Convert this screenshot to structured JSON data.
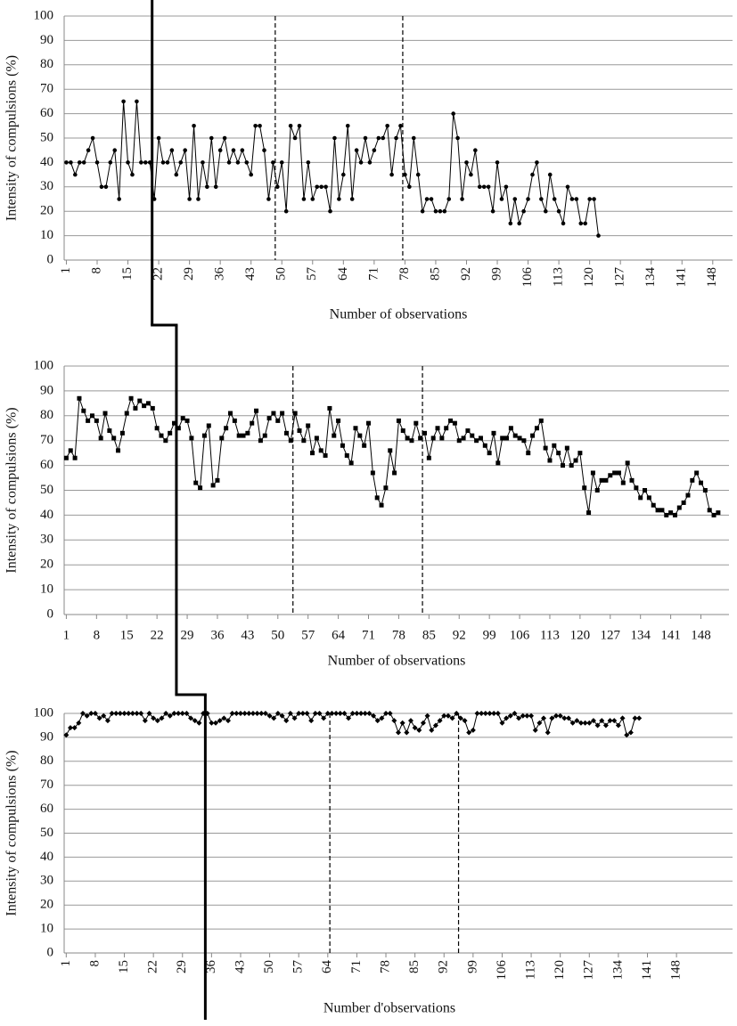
{
  "chart_data": [
    {
      "type": "line",
      "y_label": "Intensity of compulsions (%)",
      "x_label": "Number of observations",
      "color": "#000000",
      "marker": "circle",
      "grid": true,
      "xlim": [
        0.5,
        152.5
      ],
      "ylim": [
        0,
        100
      ],
      "xticks": [
        1,
        8,
        15,
        22,
        29,
        36,
        43,
        50,
        57,
        64,
        71,
        78,
        85,
        92,
        99,
        106,
        113,
        120,
        127,
        134,
        141,
        148
      ],
      "yticks": [
        0,
        10,
        20,
        30,
        40,
        50,
        60,
        70,
        80,
        90,
        100
      ],
      "baseline_end": 20.5,
      "phase_lines": [
        48.5,
        77.5
      ],
      "x": [
        1,
        2,
        3,
        4,
        5,
        6,
        7,
        8,
        9,
        10,
        11,
        12,
        13,
        14,
        15,
        16,
        17,
        18,
        19,
        20,
        21,
        22,
        23,
        24,
        25,
        26,
        27,
        28,
        29,
        30,
        31,
        32,
        33,
        34,
        35,
        36,
        37,
        38,
        39,
        40,
        41,
        42,
        43,
        44,
        45,
        46,
        47,
        48,
        49,
        50,
        51,
        52,
        53,
        54,
        55,
        56,
        57,
        58,
        59,
        60,
        61,
        62,
        63,
        64,
        65,
        66,
        67,
        68,
        69,
        70,
        71,
        72,
        73,
        74,
        75,
        76,
        77,
        78,
        79,
        80,
        81,
        82,
        83,
        84,
        85,
        86,
        87,
        88,
        89,
        90,
        91,
        92,
        93,
        94,
        95,
        96,
        97,
        98,
        99,
        100,
        101,
        102,
        103,
        104,
        105,
        106,
        107,
        108,
        109,
        110,
        111,
        112,
        113,
        114,
        115,
        116,
        117,
        118,
        119,
        120,
        121,
        122
      ],
      "values": [
        40,
        40,
        35,
        40,
        40,
        45,
        50,
        40,
        30,
        30,
        40,
        45,
        25,
        65,
        40,
        35,
        65,
        40,
        40,
        40,
        25,
        50,
        40,
        40,
        45,
        35,
        40,
        45,
        25,
        55,
        25,
        40,
        30,
        50,
        30,
        45,
        50,
        40,
        45,
        40,
        45,
        40,
        35,
        55,
        55,
        45,
        25,
        40,
        30,
        40,
        20,
        55,
        50,
        55,
        25,
        40,
        25,
        30,
        30,
        30,
        20,
        50,
        25,
        35,
        55,
        25,
        45,
        40,
        50,
        40,
        45,
        50,
        50,
        55,
        35,
        50,
        55,
        35,
        30,
        50,
        35,
        20,
        25,
        25,
        20,
        20,
        20,
        25,
        60,
        50,
        25,
        40,
        35,
        45,
        30,
        30,
        30,
        20,
        40,
        25,
        30,
        15,
        25,
        15,
        20,
        25,
        35,
        40,
        25,
        20,
        35,
        25,
        20,
        15,
        30,
        25,
        25,
        15,
        15,
        25,
        25,
        10
      ]
    },
    {
      "type": "line",
      "y_label": "Intensity of compulsions (%)",
      "x_label": "Number of observations",
      "color": "#000000",
      "marker": "square",
      "grid": true,
      "xlim": [
        0.5,
        154.5
      ],
      "ylim": [
        0,
        100
      ],
      "xticks": [
        1,
        8,
        15,
        22,
        29,
        36,
        43,
        50,
        57,
        64,
        71,
        78,
        85,
        92,
        99,
        106,
        113,
        120,
        127,
        134,
        141,
        148
      ],
      "yticks": [
        0,
        10,
        20,
        30,
        40,
        50,
        60,
        70,
        80,
        90,
        100
      ],
      "baseline_end": 26.5,
      "phase_lines": [
        53.5,
        83.5
      ],
      "x": [
        1,
        2,
        3,
        4,
        5,
        6,
        7,
        8,
        9,
        10,
        11,
        12,
        13,
        14,
        15,
        16,
        17,
        18,
        19,
        20,
        21,
        22,
        23,
        24,
        25,
        26,
        27,
        28,
        29,
        30,
        31,
        32,
        33,
        34,
        35,
        36,
        37,
        38,
        39,
        40,
        41,
        42,
        43,
        44,
        45,
        46,
        47,
        48,
        49,
        50,
        51,
        52,
        53,
        54,
        55,
        56,
        57,
        58,
        59,
        60,
        61,
        62,
        63,
        64,
        65,
        66,
        67,
        68,
        69,
        70,
        71,
        72,
        73,
        74,
        75,
        76,
        77,
        78,
        79,
        80,
        81,
        82,
        83,
        84,
        85,
        86,
        87,
        88,
        89,
        90,
        91,
        92,
        93,
        94,
        95,
        96,
        97,
        98,
        99,
        100,
        101,
        102,
        103,
        104,
        105,
        106,
        107,
        108,
        109,
        110,
        111,
        112,
        113,
        114,
        115,
        116,
        117,
        118,
        119,
        120,
        121,
        122,
        123,
        124,
        125,
        126,
        127,
        128,
        129,
        130,
        131,
        132,
        133,
        134,
        135,
        136,
        137,
        138,
        139,
        140,
        141,
        142,
        143,
        144,
        145,
        146,
        147,
        148,
        149,
        150,
        151,
        152
      ],
      "values": [
        63,
        66,
        63,
        87,
        82,
        78,
        80,
        78,
        71,
        81,
        74,
        71,
        66,
        73,
        81,
        87,
        83,
        86,
        84,
        85,
        83,
        75,
        72,
        70,
        73,
        77,
        75,
        79,
        78,
        71,
        53,
        51,
        72,
        76,
        52,
        54,
        71,
        75,
        81,
        78,
        72,
        72,
        73,
        77,
        82,
        70,
        72,
        79,
        81,
        78,
        81,
        73,
        70,
        81,
        74,
        70,
        76,
        65,
        71,
        66,
        64,
        83,
        72,
        78,
        68,
        64,
        61,
        75,
        72,
        68,
        77,
        57,
        47,
        44,
        51,
        66,
        57,
        78,
        74,
        71,
        70,
        77,
        71,
        73,
        63,
        71,
        75,
        71,
        75,
        78,
        77,
        70,
        71,
        74,
        72,
        70,
        71,
        68,
        65,
        73,
        61,
        71,
        71,
        75,
        72,
        71,
        70,
        65,
        72,
        75,
        78,
        67,
        62,
        68,
        65,
        60,
        67,
        60,
        62,
        65,
        51,
        41,
        57,
        50,
        54,
        54,
        56,
        57,
        57,
        53,
        61,
        54,
        51,
        47,
        50,
        47,
        44,
        42,
        42,
        40,
        41,
        40,
        43,
        45,
        48,
        54,
        57,
        53,
        50,
        42,
        40,
        41
      ]
    },
    {
      "type": "line",
      "y_label": "Intensity of compulsions  (%)",
      "x_label": "Number d'observations",
      "color": "#000000",
      "marker": "diamond",
      "grid": true,
      "xlim": [
        0.5,
        161.5
      ],
      "ylim": [
        0,
        100
      ],
      "xticks": [
        1,
        8,
        15,
        22,
        29,
        36,
        43,
        50,
        57,
        64,
        71,
        78,
        85,
        92,
        99,
        106,
        113,
        120,
        127,
        134,
        141,
        148
      ],
      "yticks": [
        0,
        10,
        20,
        30,
        40,
        50,
        60,
        70,
        80,
        90,
        100
      ],
      "baseline_end": 34.5,
      "phase_lines": [
        64.5,
        95.5
      ],
      "x": [
        1,
        2,
        3,
        4,
        5,
        6,
        7,
        8,
        9,
        10,
        11,
        12,
        13,
        14,
        15,
        16,
        17,
        18,
        19,
        20,
        21,
        22,
        23,
        24,
        25,
        26,
        27,
        28,
        29,
        30,
        31,
        32,
        33,
        34,
        35,
        36,
        37,
        38,
        39,
        40,
        41,
        42,
        43,
        44,
        45,
        46,
        47,
        48,
        49,
        50,
        51,
        52,
        53,
        54,
        55,
        56,
        57,
        58,
        59,
        60,
        61,
        62,
        63,
        64,
        65,
        66,
        67,
        68,
        69,
        70,
        71,
        72,
        73,
        74,
        75,
        76,
        77,
        78,
        79,
        80,
        81,
        82,
        83,
        84,
        85,
        86,
        87,
        88,
        89,
        90,
        91,
        92,
        93,
        94,
        95,
        96,
        97,
        98,
        99,
        100,
        101,
        102,
        103,
        104,
        105,
        106,
        107,
        108,
        109,
        110,
        111,
        112,
        113,
        114,
        115,
        116,
        117,
        118,
        119,
        120,
        121,
        122,
        123,
        124,
        125,
        126,
        127,
        128,
        129,
        130,
        131,
        132,
        133,
        134,
        135,
        136,
        137,
        138,
        139
      ],
      "values": [
        91,
        94,
        94,
        96,
        100,
        99,
        100,
        100,
        98,
        99,
        97,
        100,
        100,
        100,
        100,
        100,
        100,
        100,
        100,
        97,
        100,
        98,
        97,
        98,
        100,
        99,
        100,
        100,
        100,
        100,
        98,
        97,
        96,
        100,
        100,
        96,
        96,
        97,
        98,
        97,
        100,
        100,
        100,
        100,
        100,
        100,
        100,
        100,
        100,
        99,
        98,
        100,
        99,
        97,
        100,
        98,
        100,
        100,
        100,
        97,
        100,
        100,
        98,
        100,
        100,
        100,
        100,
        100,
        98,
        100,
        100,
        100,
        100,
        100,
        99,
        97,
        98,
        100,
        100,
        97,
        92,
        96,
        92,
        97,
        94,
        93,
        96,
        99,
        93,
        95,
        97,
        99,
        99,
        98,
        100,
        98,
        97,
        92,
        93,
        100,
        100,
        100,
        100,
        100,
        100,
        96,
        98,
        99,
        100,
        98,
        99,
        99,
        99,
        93,
        96,
        98,
        92,
        98,
        99,
        99,
        98,
        98,
        96,
        97,
        96,
        96,
        96,
        97,
        95,
        97,
        95,
        97,
        97,
        95,
        98,
        91,
        92,
        98,
        98
      ]
    }
  ]
}
